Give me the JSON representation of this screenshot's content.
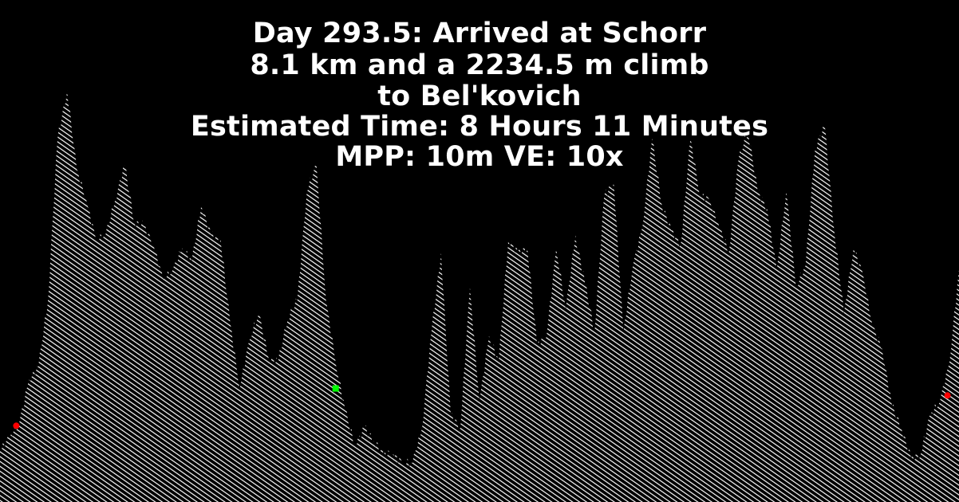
{
  "title_lines": [
    "Day 293.5: Arrived at Schorr",
    "8.1 km and a 2234.5 m climb",
    "to Bel'kovich",
    "Estimated Time: 8 Hours 11 Minutes",
    "MPP: 10m VE: 10x"
  ],
  "colors": {
    "background": "#000000",
    "terrain_fill": "#ffffff",
    "start_marker": "#ff0000",
    "end_marker": "#ff0000",
    "waypoint_marker": "#00ff00",
    "text": "#ffffff"
  },
  "chart_data": {
    "type": "area",
    "grid": false,
    "legend": "none",
    "fill_style": "diagonal-hatch",
    "x": [
      0,
      0.01,
      0.02,
      0.03,
      0.04,
      0.05,
      0.06,
      0.07,
      0.08,
      0.09,
      0.1,
      0.11,
      0.12,
      0.13,
      0.14,
      0.15,
      0.16,
      0.17,
      0.18,
      0.19,
      0.2,
      0.21,
      0.22,
      0.23,
      0.24,
      0.25,
      0.26,
      0.27,
      0.28,
      0.29,
      0.3,
      0.31,
      0.32,
      0.33,
      0.34,
      0.35,
      0.36,
      0.37,
      0.38,
      0.39,
      0.4,
      0.41,
      0.42,
      0.43,
      0.44,
      0.45,
      0.46,
      0.47,
      0.48,
      0.49,
      0.5,
      0.51,
      0.52,
      0.53,
      0.54,
      0.55,
      0.56,
      0.57,
      0.58,
      0.59,
      0.6,
      0.61,
      0.62,
      0.63,
      0.64,
      0.65,
      0.66,
      0.67,
      0.68,
      0.69,
      0.7,
      0.71,
      0.72,
      0.73,
      0.74,
      0.75,
      0.76,
      0.77,
      0.78,
      0.79,
      0.8,
      0.81,
      0.82,
      0.83,
      0.84,
      0.85,
      0.86,
      0.87,
      0.88,
      0.89,
      0.9,
      0.91,
      0.92,
      0.93,
      0.94,
      0.95,
      0.96,
      0.97,
      0.98,
      0.99,
      1.0
    ],
    "elevation": [
      0.11,
      0.14,
      0.17,
      0.27,
      0.3,
      0.45,
      0.82,
      0.93,
      0.75,
      0.68,
      0.59,
      0.6,
      0.68,
      0.76,
      0.63,
      0.62,
      0.58,
      0.5,
      0.52,
      0.57,
      0.54,
      0.67,
      0.6,
      0.59,
      0.4,
      0.25,
      0.36,
      0.42,
      0.32,
      0.31,
      0.41,
      0.45,
      0.7,
      0.76,
      0.45,
      0.31,
      0.2,
      0.12,
      0.16,
      0.13,
      0.1,
      0.1,
      0.08,
      0.08,
      0.16,
      0.38,
      0.56,
      0.19,
      0.16,
      0.48,
      0.22,
      0.37,
      0.31,
      0.59,
      0.56,
      0.57,
      0.35,
      0.37,
      0.57,
      0.43,
      0.6,
      0.49,
      0.38,
      0.69,
      0.72,
      0.38,
      0.53,
      0.62,
      0.82,
      0.67,
      0.61,
      0.58,
      0.82,
      0.69,
      0.68,
      0.62,
      0.56,
      0.77,
      0.84,
      0.7,
      0.66,
      0.52,
      0.7,
      0.48,
      0.53,
      0.8,
      0.85,
      0.61,
      0.42,
      0.57,
      0.51,
      0.39,
      0.34,
      0.21,
      0.16,
      0.09,
      0.1,
      0.19,
      0.22,
      0.31,
      0.52
    ],
    "markers": [
      {
        "role": "start",
        "x": 0.017,
        "elevation": 0.165
      },
      {
        "role": "waypoint",
        "x": 0.35,
        "elevation": 0.25
      },
      {
        "role": "end",
        "x": 0.988,
        "elevation": 0.234
      }
    ]
  }
}
